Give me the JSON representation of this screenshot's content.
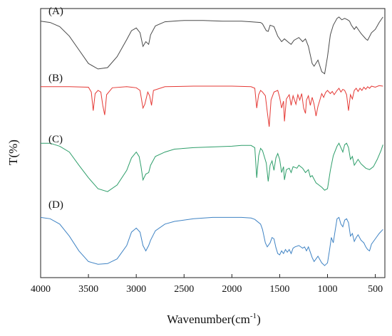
{
  "chart_data": {
    "type": "line",
    "xlabel": "Wavenumber(cm",
    "xlabel_sup": "-1",
    "xlabel_end": ")",
    "ylabel": "T(%)",
    "xlim": [
      4000,
      400
    ],
    "x_reversed": true,
    "yticks_shown": false,
    "grid": false,
    "xticks": [
      4000,
      3500,
      3000,
      2500,
      2000,
      1500,
      1000,
      500
    ],
    "xtick_labels": [
      "4000",
      "3500",
      "3000",
      "2500",
      "2000",
      "1500",
      "1000",
      "500"
    ],
    "series": [
      {
        "name": "(A)",
        "color": "#4a4a4a",
        "points": [
          [
            4000,
            92
          ],
          [
            3900,
            90
          ],
          [
            3800,
            84
          ],
          [
            3700,
            70
          ],
          [
            3600,
            50
          ],
          [
            3500,
            30
          ],
          [
            3400,
            22
          ],
          [
            3300,
            24
          ],
          [
            3200,
            40
          ],
          [
            3100,
            65
          ],
          [
            3050,
            78
          ],
          [
            3000,
            82
          ],
          [
            2960,
            75
          ],
          [
            2930,
            55
          ],
          [
            2900,
            62
          ],
          [
            2870,
            58
          ],
          [
            2850,
            72
          ],
          [
            2800,
            85
          ],
          [
            2700,
            91
          ],
          [
            2500,
            93
          ],
          [
            2300,
            93
          ],
          [
            2100,
            92
          ],
          [
            2000,
            92
          ],
          [
            1900,
            92
          ],
          [
            1800,
            91
          ],
          [
            1700,
            90
          ],
          [
            1680,
            88
          ],
          [
            1640,
            78
          ],
          [
            1620,
            77
          ],
          [
            1600,
            86
          ],
          [
            1560,
            84
          ],
          [
            1520,
            70
          ],
          [
            1480,
            62
          ],
          [
            1450,
            66
          ],
          [
            1400,
            60
          ],
          [
            1380,
            58
          ],
          [
            1350,
            64
          ],
          [
            1300,
            68
          ],
          [
            1260,
            62
          ],
          [
            1230,
            66
          ],
          [
            1200,
            55
          ],
          [
            1160,
            30
          ],
          [
            1140,
            26
          ],
          [
            1100,
            35
          ],
          [
            1060,
            18
          ],
          [
            1030,
            15
          ],
          [
            1000,
            40
          ],
          [
            970,
            72
          ],
          [
            940,
            86
          ],
          [
            900,
            96
          ],
          [
            880,
            98
          ],
          [
            850,
            94
          ],
          [
            820,
            96
          ],
          [
            790,
            94
          ],
          [
            770,
            92
          ],
          [
            750,
            86
          ],
          [
            720,
            80
          ],
          [
            700,
            84
          ],
          [
            650,
            74
          ],
          [
            600,
            66
          ],
          [
            580,
            64
          ],
          [
            540,
            75
          ],
          [
            500,
            80
          ],
          [
            460,
            90
          ],
          [
            420,
            98
          ]
        ]
      },
      {
        "name": "(B)",
        "color": "#e53935",
        "points": [
          [
            4000,
            95
          ],
          [
            3700,
            95
          ],
          [
            3500,
            94
          ],
          [
            3470,
            85
          ],
          [
            3450,
            50
          ],
          [
            3430,
            82
          ],
          [
            3400,
            88
          ],
          [
            3370,
            85
          ],
          [
            3350,
            60
          ],
          [
            3330,
            42
          ],
          [
            3310,
            80
          ],
          [
            3250,
            93
          ],
          [
            3100,
            95
          ],
          [
            3050,
            94
          ],
          [
            3000,
            93
          ],
          [
            2960,
            88
          ],
          [
            2930,
            55
          ],
          [
            2910,
            62
          ],
          [
            2880,
            85
          ],
          [
            2860,
            78
          ],
          [
            2840,
            60
          ],
          [
            2820,
            88
          ],
          [
            2700,
            95
          ],
          [
            2400,
            96
          ],
          [
            2000,
            96
          ],
          [
            1800,
            95
          ],
          [
            1760,
            92
          ],
          [
            1740,
            55
          ],
          [
            1720,
            80
          ],
          [
            1700,
            88
          ],
          [
            1680,
            85
          ],
          [
            1650,
            78
          ],
          [
            1630,
            48
          ],
          [
            1610,
            20
          ],
          [
            1590,
            70
          ],
          [
            1560,
            85
          ],
          [
            1520,
            88
          ],
          [
            1500,
            75
          ],
          [
            1480,
            55
          ],
          [
            1460,
            68
          ],
          [
            1450,
            30
          ],
          [
            1430,
            72
          ],
          [
            1400,
            80
          ],
          [
            1380,
            60
          ],
          [
            1360,
            78
          ],
          [
            1330,
            62
          ],
          [
            1310,
            80
          ],
          [
            1290,
            70
          ],
          [
            1270,
            82
          ],
          [
            1250,
            55
          ],
          [
            1230,
            45
          ],
          [
            1220,
            70
          ],
          [
            1200,
            78
          ],
          [
            1180,
            60
          ],
          [
            1160,
            75
          ],
          [
            1140,
            62
          ],
          [
            1120,
            40
          ],
          [
            1100,
            58
          ],
          [
            1080,
            70
          ],
          [
            1060,
            82
          ],
          [
            1040,
            75
          ],
          [
            1020,
            84
          ],
          [
            1000,
            88
          ],
          [
            970,
            82
          ],
          [
            950,
            86
          ],
          [
            930,
            80
          ],
          [
            900,
            88
          ],
          [
            880,
            92
          ],
          [
            860,
            85
          ],
          [
            840,
            90
          ],
          [
            820,
            88
          ],
          [
            800,
            80
          ],
          [
            780,
            50
          ],
          [
            760,
            80
          ],
          [
            740,
            72
          ],
          [
            720,
            88
          ],
          [
            700,
            92
          ],
          [
            680,
            86
          ],
          [
            660,
            92
          ],
          [
            640,
            88
          ],
          [
            620,
            94
          ],
          [
            600,
            90
          ],
          [
            580,
            95
          ],
          [
            560,
            92
          ],
          [
            540,
            96
          ],
          [
            500,
            94
          ],
          [
            460,
            97
          ],
          [
            420,
            96
          ]
        ]
      },
      {
        "name": "(C)",
        "color": "#2e9e6a",
        "points": [
          [
            4000,
            92
          ],
          [
            3900,
            92
          ],
          [
            3800,
            88
          ],
          [
            3700,
            80
          ],
          [
            3600,
            62
          ],
          [
            3500,
            45
          ],
          [
            3400,
            30
          ],
          [
            3300,
            26
          ],
          [
            3200,
            35
          ],
          [
            3100,
            55
          ],
          [
            3050,
            72
          ],
          [
            3000,
            80
          ],
          [
            2970,
            74
          ],
          [
            2950,
            60
          ],
          [
            2930,
            42
          ],
          [
            2900,
            50
          ],
          [
            2870,
            52
          ],
          [
            2850,
            62
          ],
          [
            2800,
            74
          ],
          [
            2700,
            80
          ],
          [
            2600,
            84
          ],
          [
            2400,
            86
          ],
          [
            2200,
            87
          ],
          [
            2000,
            88
          ],
          [
            1900,
            89
          ],
          [
            1800,
            89
          ],
          [
            1760,
            86
          ],
          [
            1740,
            45
          ],
          [
            1720,
            75
          ],
          [
            1700,
            85
          ],
          [
            1680,
            82
          ],
          [
            1640,
            65
          ],
          [
            1620,
            40
          ],
          [
            1600,
            62
          ],
          [
            1580,
            68
          ],
          [
            1560,
            55
          ],
          [
            1540,
            72
          ],
          [
            1520,
            78
          ],
          [
            1500,
            70
          ],
          [
            1480,
            52
          ],
          [
            1460,
            60
          ],
          [
            1450,
            42
          ],
          [
            1430,
            56
          ],
          [
            1400,
            58
          ],
          [
            1380,
            52
          ],
          [
            1360,
            60
          ],
          [
            1320,
            58
          ],
          [
            1300,
            62
          ],
          [
            1260,
            58
          ],
          [
            1230,
            52
          ],
          [
            1200,
            56
          ],
          [
            1180,
            46
          ],
          [
            1160,
            48
          ],
          [
            1120,
            38
          ],
          [
            1100,
            36
          ],
          [
            1060,
            32
          ],
          [
            1030,
            28
          ],
          [
            1000,
            30
          ],
          [
            970,
            55
          ],
          [
            940,
            75
          ],
          [
            900,
            88
          ],
          [
            880,
            92
          ],
          [
            860,
            86
          ],
          [
            840,
            80
          ],
          [
            820,
            90
          ],
          [
            800,
            92
          ],
          [
            780,
            86
          ],
          [
            760,
            70
          ],
          [
            740,
            74
          ],
          [
            720,
            62
          ],
          [
            700,
            66
          ],
          [
            680,
            70
          ],
          [
            650,
            64
          ],
          [
            600,
            58
          ],
          [
            560,
            56
          ],
          [
            520,
            60
          ],
          [
            480,
            70
          ],
          [
            440,
            82
          ],
          [
            420,
            90
          ]
        ]
      },
      {
        "name": "(D)",
        "color": "#3f83c4",
        "points": [
          [
            4000,
            90
          ],
          [
            3900,
            88
          ],
          [
            3800,
            80
          ],
          [
            3700,
            62
          ],
          [
            3600,
            40
          ],
          [
            3500,
            24
          ],
          [
            3400,
            20
          ],
          [
            3300,
            21
          ],
          [
            3200,
            28
          ],
          [
            3100,
            48
          ],
          [
            3050,
            68
          ],
          [
            3000,
            74
          ],
          [
            2960,
            68
          ],
          [
            2930,
            48
          ],
          [
            2900,
            40
          ],
          [
            2870,
            48
          ],
          [
            2850,
            56
          ],
          [
            2800,
            70
          ],
          [
            2700,
            80
          ],
          [
            2600,
            84
          ],
          [
            2400,
            88
          ],
          [
            2200,
            90
          ],
          [
            2000,
            90
          ],
          [
            1900,
            90
          ],
          [
            1800,
            89
          ],
          [
            1760,
            87
          ],
          [
            1700,
            80
          ],
          [
            1680,
            72
          ],
          [
            1650,
            52
          ],
          [
            1630,
            46
          ],
          [
            1600,
            52
          ],
          [
            1580,
            60
          ],
          [
            1560,
            58
          ],
          [
            1540,
            45
          ],
          [
            1520,
            36
          ],
          [
            1500,
            34
          ],
          [
            1480,
            40
          ],
          [
            1460,
            36
          ],
          [
            1440,
            42
          ],
          [
            1420,
            38
          ],
          [
            1400,
            42
          ],
          [
            1380,
            36
          ],
          [
            1360,
            44
          ],
          [
            1340,
            46
          ],
          [
            1300,
            48
          ],
          [
            1260,
            44
          ],
          [
            1240,
            46
          ],
          [
            1220,
            40
          ],
          [
            1200,
            46
          ],
          [
            1180,
            38
          ],
          [
            1160,
            30
          ],
          [
            1140,
            24
          ],
          [
            1120,
            28
          ],
          [
            1100,
            32
          ],
          [
            1060,
            22
          ],
          [
            1030,
            18
          ],
          [
            1000,
            22
          ],
          [
            980,
            40
          ],
          [
            960,
            60
          ],
          [
            940,
            52
          ],
          [
            920,
            70
          ],
          [
            900,
            88
          ],
          [
            880,
            90
          ],
          [
            860,
            80
          ],
          [
            840,
            76
          ],
          [
            820,
            86
          ],
          [
            800,
            88
          ],
          [
            780,
            82
          ],
          [
            760,
            62
          ],
          [
            740,
            66
          ],
          [
            720,
            54
          ],
          [
            700,
            60
          ],
          [
            680,
            64
          ],
          [
            650,
            56
          ],
          [
            620,
            52
          ],
          [
            600,
            46
          ],
          [
            580,
            42
          ],
          [
            560,
            40
          ],
          [
            540,
            50
          ],
          [
            500,
            58
          ],
          [
            460,
            66
          ],
          [
            420,
            72
          ]
        ]
      }
    ]
  }
}
